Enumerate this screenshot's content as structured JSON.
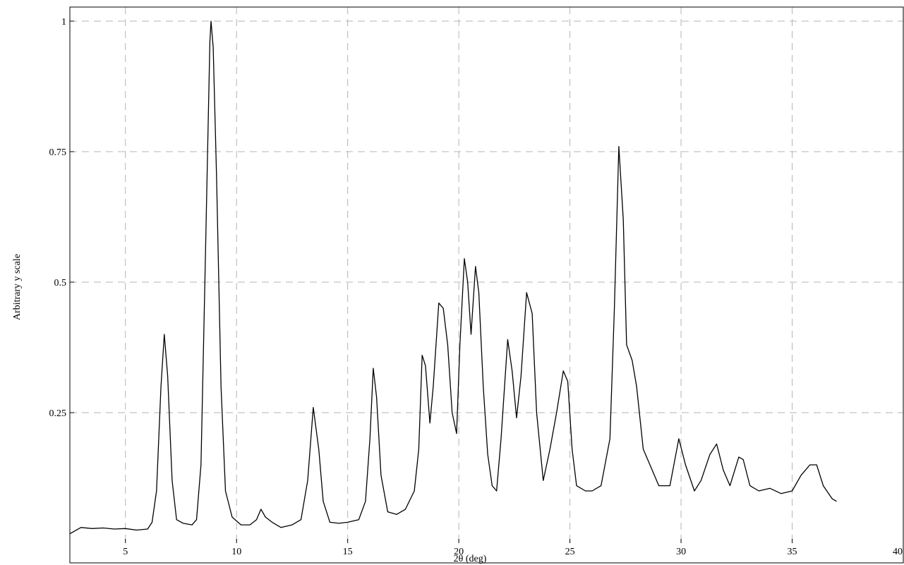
{
  "chart_data": {
    "type": "line",
    "title": "",
    "xlabel": "2θ (deg)",
    "ylabel": "Arbitrary y scale",
    "xlim": [
      2.5,
      40
    ],
    "ylim": [
      0,
      1
    ],
    "x_ticks": [
      5,
      10,
      15,
      20,
      25,
      30,
      35,
      40
    ],
    "y_ticks": [
      0.25,
      0.5,
      0.75,
      1
    ],
    "x_tick_labels": [
      "5",
      "10",
      "15",
      "20",
      "25",
      "30",
      "35",
      "40"
    ],
    "y_tick_labels": [
      "0.25",
      "0.5",
      "0.75",
      "1"
    ],
    "grid": true,
    "grid_style": "dashed",
    "line_color": "#000000",
    "grid_color": "#b4b4b4",
    "series": [
      {
        "points": [
          [
            2.5,
            0.018
          ],
          [
            3.0,
            0.03
          ],
          [
            3.5,
            0.028
          ],
          [
            4.0,
            0.029
          ],
          [
            4.5,
            0.027
          ],
          [
            5.0,
            0.028
          ],
          [
            5.5,
            0.025
          ],
          [
            6.0,
            0.027
          ],
          [
            6.2,
            0.04
          ],
          [
            6.4,
            0.1
          ],
          [
            6.6,
            0.3
          ],
          [
            6.75,
            0.4
          ],
          [
            6.9,
            0.32
          ],
          [
            7.1,
            0.12
          ],
          [
            7.3,
            0.045
          ],
          [
            7.6,
            0.038
          ],
          [
            8.0,
            0.035
          ],
          [
            8.2,
            0.045
          ],
          [
            8.4,
            0.15
          ],
          [
            8.6,
            0.55
          ],
          [
            8.8,
            0.96
          ],
          [
            8.85,
            1.0
          ],
          [
            8.95,
            0.95
          ],
          [
            9.1,
            0.7
          ],
          [
            9.3,
            0.3
          ],
          [
            9.5,
            0.1
          ],
          [
            9.8,
            0.05
          ],
          [
            10.2,
            0.035
          ],
          [
            10.6,
            0.035
          ],
          [
            10.9,
            0.045
          ],
          [
            11.1,
            0.065
          ],
          [
            11.3,
            0.05
          ],
          [
            11.6,
            0.04
          ],
          [
            12.0,
            0.03
          ],
          [
            12.5,
            0.035
          ],
          [
            12.9,
            0.045
          ],
          [
            13.2,
            0.12
          ],
          [
            13.45,
            0.26
          ],
          [
            13.7,
            0.18
          ],
          [
            13.9,
            0.08
          ],
          [
            14.2,
            0.04
          ],
          [
            14.6,
            0.038
          ],
          [
            15.0,
            0.04
          ],
          [
            15.5,
            0.045
          ],
          [
            15.8,
            0.08
          ],
          [
            16.0,
            0.2
          ],
          [
            16.15,
            0.335
          ],
          [
            16.3,
            0.28
          ],
          [
            16.5,
            0.13
          ],
          [
            16.8,
            0.06
          ],
          [
            17.2,
            0.055
          ],
          [
            17.6,
            0.065
          ],
          [
            18.0,
            0.1
          ],
          [
            18.2,
            0.18
          ],
          [
            18.35,
            0.36
          ],
          [
            18.5,
            0.34
          ],
          [
            18.7,
            0.23
          ],
          [
            18.85,
            0.3
          ],
          [
            19.1,
            0.46
          ],
          [
            19.3,
            0.45
          ],
          [
            19.5,
            0.38
          ],
          [
            19.7,
            0.25
          ],
          [
            19.9,
            0.21
          ],
          [
            20.05,
            0.38
          ],
          [
            20.25,
            0.545
          ],
          [
            20.4,
            0.5
          ],
          [
            20.55,
            0.4
          ],
          [
            20.75,
            0.53
          ],
          [
            20.9,
            0.48
          ],
          [
            21.1,
            0.3
          ],
          [
            21.3,
            0.17
          ],
          [
            21.5,
            0.11
          ],
          [
            21.7,
            0.1
          ],
          [
            21.9,
            0.2
          ],
          [
            22.2,
            0.39
          ],
          [
            22.4,
            0.33
          ],
          [
            22.6,
            0.24
          ],
          [
            22.8,
            0.32
          ],
          [
            23.05,
            0.48
          ],
          [
            23.3,
            0.44
          ],
          [
            23.5,
            0.25
          ],
          [
            23.8,
            0.12
          ],
          [
            24.1,
            0.18
          ],
          [
            24.4,
            0.25
          ],
          [
            24.7,
            0.33
          ],
          [
            24.9,
            0.31
          ],
          [
            25.1,
            0.18
          ],
          [
            25.3,
            0.11
          ],
          [
            25.7,
            0.1
          ],
          [
            26.0,
            0.1
          ],
          [
            26.4,
            0.11
          ],
          [
            26.8,
            0.2
          ],
          [
            27.0,
            0.45
          ],
          [
            27.2,
            0.76
          ],
          [
            27.4,
            0.62
          ],
          [
            27.55,
            0.38
          ],
          [
            27.8,
            0.35
          ],
          [
            28.0,
            0.3
          ],
          [
            28.3,
            0.18
          ],
          [
            28.6,
            0.15
          ],
          [
            29.0,
            0.11
          ],
          [
            29.5,
            0.11
          ],
          [
            29.9,
            0.2
          ],
          [
            30.2,
            0.15
          ],
          [
            30.6,
            0.1
          ],
          [
            30.9,
            0.12
          ],
          [
            31.3,
            0.17
          ],
          [
            31.6,
            0.19
          ],
          [
            31.9,
            0.14
          ],
          [
            32.2,
            0.11
          ],
          [
            32.6,
            0.165
          ],
          [
            32.8,
            0.16
          ],
          [
            33.1,
            0.11
          ],
          [
            33.5,
            0.1
          ],
          [
            34.0,
            0.105
          ],
          [
            34.5,
            0.095
          ],
          [
            35.0,
            0.1
          ],
          [
            35.4,
            0.13
          ],
          [
            35.8,
            0.15
          ],
          [
            36.1,
            0.15
          ],
          [
            36.4,
            0.11
          ],
          [
            36.8,
            0.085
          ],
          [
            37.0,
            0.08
          ]
        ]
      }
    ]
  }
}
